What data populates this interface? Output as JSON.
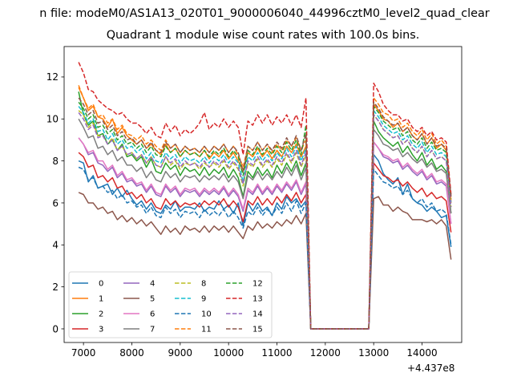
{
  "suptitle": "n file: modeM0/AS1A13_020T01_9000006040_44996cztM0_level2_quad_clear",
  "chart_data": {
    "type": "line",
    "title": "Quadrant 1 module wise count rates with 100.0s bins.",
    "xlabel": "",
    "ylabel": "",
    "x_offset_label": "+4.437e8",
    "x_offset": 443700000,
    "xlim": [
      6600,
      14820
    ],
    "ylim": [
      -0.65,
      13.45
    ],
    "xticks": [
      7000,
      8000,
      9000,
      10000,
      11000,
      12000,
      13000,
      14000
    ],
    "yticks": [
      0,
      2,
      4,
      6,
      8,
      10,
      12
    ],
    "grid": false,
    "legend_position": "lower-left",
    "x": [
      6900,
      7000,
      7100,
      7200,
      7300,
      7400,
      7500,
      7600,
      7700,
      7800,
      7900,
      8000,
      8100,
      8200,
      8300,
      8400,
      8500,
      8600,
      8700,
      8800,
      8900,
      9000,
      9100,
      9200,
      9300,
      9400,
      9500,
      9600,
      9700,
      9800,
      9900,
      10000,
      10100,
      10200,
      10300,
      10400,
      10500,
      10600,
      10700,
      10800,
      10900,
      11000,
      11100,
      11200,
      11300,
      11400,
      11500,
      11600,
      11700,
      11800,
      12900,
      13000,
      13100,
      13200,
      13300,
      13400,
      13500,
      13600,
      13700,
      13800,
      13900,
      14000,
      14100,
      14200,
      14300,
      14400,
      14500,
      14600
    ],
    "series": [
      {
        "name": "0",
        "color": "#1f77b4",
        "dash": "solid",
        "values": [
          8.0,
          7.9,
          7.0,
          7.3,
          6.7,
          6.8,
          6.9,
          6.4,
          6.7,
          6.3,
          6.6,
          6.2,
          5.9,
          6.1,
          5.7,
          6.0,
          5.6,
          5.5,
          5.9,
          5.7,
          6.1,
          5.6,
          5.8,
          5.8,
          5.7,
          6.0,
          5.6,
          5.8,
          5.7,
          6.1,
          5.7,
          5.9,
          5.5,
          6.0,
          4.9,
          6.0,
          5.6,
          6.0,
          5.6,
          5.8,
          5.4,
          6.0,
          5.7,
          6.3,
          6.0,
          6.2,
          5.8,
          6.1,
          0,
          0,
          0,
          8.3,
          8.0,
          7.4,
          7.1,
          6.9,
          7.2,
          6.4,
          6.9,
          6.2,
          6.0,
          5.9,
          5.6,
          5.8,
          5.6,
          5.3,
          5.4,
          3.9
        ]
      },
      {
        "name": "1",
        "color": "#ff7f0e",
        "dash": "solid",
        "values": [
          11.5,
          11.0,
          10.4,
          10.6,
          10.1,
          10.0,
          9.6,
          10.0,
          9.3,
          9.6,
          9.2,
          9.0,
          8.8,
          9.0,
          8.6,
          8.8,
          8.5,
          8.3,
          8.8,
          8.4,
          8.6,
          8.2,
          8.5,
          8.3,
          8.4,
          8.2,
          8.5,
          8.1,
          8.4,
          8.2,
          8.5,
          8.1,
          8.4,
          8.0,
          7.5,
          8.4,
          8.2,
          8.6,
          8.2,
          8.5,
          8.1,
          8.5,
          8.2,
          8.7,
          8.4,
          8.8,
          8.2,
          8.7,
          0,
          0,
          0,
          10.7,
          10.4,
          10.0,
          9.9,
          9.6,
          9.8,
          9.4,
          9.6,
          9.2,
          9.0,
          9.3,
          8.8,
          9.1,
          8.6,
          8.8,
          8.5,
          6.0
        ]
      },
      {
        "name": "2",
        "color": "#2ca02c",
        "dash": "solid",
        "values": [
          11.3,
          10.2,
          9.7,
          9.9,
          9.2,
          9.3,
          8.8,
          9.0,
          8.5,
          8.8,
          8.2,
          8.3,
          8.0,
          8.2,
          7.7,
          8.1,
          7.5,
          7.4,
          7.9,
          7.6,
          7.8,
          7.3,
          7.7,
          7.5,
          7.6,
          7.3,
          7.7,
          7.3,
          7.6,
          7.4,
          7.7,
          7.2,
          7.6,
          7.2,
          6.3,
          7.5,
          7.2,
          7.7,
          7.3,
          7.6,
          7.2,
          7.8,
          7.4,
          7.9,
          7.5,
          8.0,
          7.3,
          7.9,
          0,
          0,
          0,
          9.9,
          9.4,
          9.1,
          8.9,
          8.7,
          8.9,
          8.4,
          8.7,
          8.3,
          8.0,
          8.4,
          7.8,
          8.1,
          7.6,
          7.8,
          7.5,
          5.5
        ]
      },
      {
        "name": "3",
        "color": "#d62728",
        "dash": "solid",
        "values": [
          8.4,
          8.2,
          7.7,
          7.8,
          7.2,
          7.3,
          7.0,
          7.2,
          6.7,
          6.8,
          6.4,
          6.5,
          6.2,
          6.4,
          6.0,
          6.2,
          5.8,
          5.7,
          6.2,
          5.9,
          6.1,
          5.8,
          6.0,
          5.9,
          6.0,
          5.8,
          6.1,
          5.9,
          6.1,
          5.9,
          6.2,
          5.8,
          6.1,
          5.8,
          5.1,
          6.1,
          5.9,
          6.3,
          5.9,
          6.2,
          5.9,
          6.3,
          6.0,
          6.4,
          6.1,
          6.5,
          6.0,
          6.4,
          0,
          0,
          0,
          7.9,
          7.6,
          7.3,
          7.2,
          7.0,
          7.1,
          6.8,
          7.0,
          6.7,
          6.5,
          6.7,
          6.3,
          6.5,
          6.2,
          6.3,
          6.1,
          4.6
        ]
      },
      {
        "name": "4",
        "color": "#9467bd",
        "dash": "solid",
        "values": [
          9.1,
          8.8,
          8.3,
          8.4,
          7.9,
          7.8,
          7.5,
          7.7,
          7.2,
          7.4,
          7.0,
          7.1,
          6.8,
          6.9,
          6.5,
          6.8,
          6.4,
          6.3,
          6.8,
          6.5,
          6.7,
          6.3,
          6.6,
          6.5,
          6.6,
          6.3,
          6.6,
          6.4,
          6.6,
          6.4,
          6.7,
          6.3,
          6.6,
          6.3,
          5.6,
          6.6,
          6.4,
          6.8,
          6.4,
          6.7,
          6.4,
          6.8,
          6.5,
          6.9,
          6.6,
          7.0,
          6.4,
          6.9,
          0,
          0,
          0,
          8.9,
          8.6,
          8.2,
          8.1,
          7.9,
          8.0,
          7.6,
          7.8,
          7.5,
          7.3,
          7.5,
          7.1,
          7.3,
          6.9,
          7.0,
          6.8,
          5.0
        ]
      },
      {
        "name": "5",
        "color": "#8c564b",
        "dash": "solid",
        "values": [
          6.5,
          6.4,
          6.0,
          6.0,
          5.7,
          5.8,
          5.5,
          5.6,
          5.2,
          5.4,
          5.1,
          5.3,
          5.0,
          5.2,
          4.9,
          5.1,
          4.8,
          4.5,
          4.9,
          4.6,
          4.8,
          4.5,
          4.9,
          4.7,
          4.8,
          4.6,
          4.9,
          4.6,
          4.9,
          4.7,
          4.9,
          4.6,
          4.9,
          4.6,
          4.3,
          4.9,
          4.7,
          5.1,
          4.8,
          5.0,
          4.8,
          5.1,
          4.9,
          5.2,
          5.0,
          5.4,
          5.0,
          5.5,
          0,
          0,
          0,
          6.2,
          6.3,
          5.9,
          5.9,
          5.6,
          5.8,
          5.6,
          5.5,
          5.2,
          5.2,
          5.2,
          5.1,
          5.2,
          5.0,
          5.2,
          4.9,
          3.3
        ]
      },
      {
        "name": "6",
        "color": "#e377c2",
        "dash": "solid",
        "values": [
          9.1,
          8.8,
          8.4,
          8.5,
          8.0,
          8.0,
          7.6,
          7.8,
          7.3,
          7.5,
          7.1,
          7.2,
          6.9,
          7.0,
          6.6,
          6.9,
          6.5,
          6.4,
          6.9,
          6.6,
          6.8,
          6.4,
          6.7,
          6.6,
          6.7,
          6.4,
          6.7,
          6.5,
          6.7,
          6.5,
          6.8,
          6.4,
          6.7,
          6.4,
          5.7,
          6.7,
          6.5,
          6.9,
          6.5,
          6.8,
          6.5,
          6.9,
          6.6,
          7.0,
          6.7,
          7.1,
          6.5,
          7.0,
          0,
          0,
          0,
          8.9,
          8.6,
          8.3,
          8.2,
          8.0,
          8.1,
          7.7,
          7.9,
          7.6,
          7.4,
          7.6,
          7.2,
          7.4,
          7.0,
          7.1,
          6.9,
          5.0
        ]
      },
      {
        "name": "7",
        "color": "#7f7f7f",
        "dash": "solid",
        "values": [
          10.0,
          9.6,
          9.1,
          9.2,
          8.6,
          8.7,
          8.3,
          8.5,
          8.0,
          8.2,
          7.8,
          7.8,
          7.5,
          7.7,
          7.2,
          7.5,
          7.1,
          7.0,
          7.5,
          7.2,
          7.4,
          7.0,
          7.3,
          7.2,
          7.3,
          7.0,
          7.3,
          7.1,
          7.3,
          7.1,
          7.4,
          7.0,
          7.3,
          7.0,
          6.2,
          7.3,
          7.1,
          7.5,
          7.1,
          7.4,
          7.1,
          7.5,
          7.2,
          7.7,
          7.3,
          7.8,
          7.1,
          7.7,
          0,
          0,
          0,
          9.5,
          9.2,
          8.8,
          8.7,
          8.5,
          8.6,
          8.2,
          8.4,
          8.1,
          7.9,
          8.1,
          7.7,
          7.9,
          7.5,
          7.6,
          7.4,
          5.5
        ]
      },
      {
        "name": "8",
        "color": "#bcbd22",
        "dash": "dashed",
        "values": [
          10.4,
          10.2,
          9.6,
          9.8,
          9.2,
          9.2,
          8.8,
          9.1,
          8.5,
          8.7,
          8.3,
          8.4,
          8.1,
          8.3,
          7.9,
          8.2,
          7.8,
          7.7,
          8.2,
          7.8,
          8.0,
          7.6,
          7.9,
          7.8,
          7.9,
          7.6,
          7.9,
          7.7,
          7.9,
          7.7,
          8.0,
          7.6,
          7.9,
          7.6,
          6.8,
          7.9,
          7.7,
          8.1,
          7.7,
          8.0,
          7.7,
          8.1,
          7.8,
          8.3,
          7.9,
          8.4,
          7.7,
          8.3,
          0,
          0,
          0,
          10.2,
          9.9,
          9.5,
          9.3,
          9.1,
          9.2,
          8.8,
          9.0,
          8.6,
          8.4,
          8.7,
          8.2,
          8.5,
          8.1,
          8.2,
          8.0,
          5.8
        ]
      },
      {
        "name": "9",
        "color": "#17becf",
        "dash": "dashed",
        "values": [
          10.6,
          10.3,
          9.8,
          10.0,
          9.4,
          9.5,
          9.0,
          9.3,
          8.8,
          9.0,
          8.6,
          8.7,
          8.4,
          8.6,
          8.1,
          8.4,
          8.0,
          7.9,
          8.4,
          8.1,
          8.3,
          7.9,
          8.2,
          8.0,
          8.1,
          7.9,
          8.2,
          7.9,
          8.2,
          8.0,
          8.3,
          7.9,
          8.2,
          7.9,
          7.0,
          8.2,
          8.0,
          8.4,
          8.0,
          8.3,
          8.0,
          8.4,
          8.1,
          8.6,
          8.2,
          8.7,
          8.0,
          8.6,
          0,
          0,
          0,
          10.4,
          10.1,
          9.7,
          9.5,
          9.3,
          9.4,
          9.0,
          9.2,
          8.8,
          8.6,
          8.9,
          8.4,
          8.7,
          8.3,
          8.4,
          8.2,
          6.0
        ]
      },
      {
        "name": "10",
        "color": "#1f77b4",
        "dash": "dashed",
        "values": [
          7.7,
          7.6,
          7.1,
          7.2,
          6.7,
          6.8,
          6.5,
          6.6,
          6.2,
          6.4,
          6.0,
          6.1,
          5.8,
          5.9,
          5.5,
          5.8,
          5.4,
          5.3,
          5.8,
          5.5,
          5.7,
          5.3,
          5.6,
          5.5,
          5.6,
          5.3,
          5.7,
          5.4,
          5.6,
          5.4,
          5.7,
          5.3,
          5.6,
          5.3,
          4.8,
          5.6,
          5.4,
          5.8,
          5.4,
          5.7,
          5.4,
          5.8,
          5.5,
          6.0,
          5.6,
          6.1,
          5.5,
          6.0,
          0,
          0,
          0,
          7.6,
          7.3,
          7.0,
          6.9,
          6.7,
          6.8,
          6.4,
          6.6,
          6.2,
          6.0,
          6.2,
          5.8,
          6.0,
          5.6,
          5.7,
          5.5,
          4.0
        ]
      },
      {
        "name": "11",
        "color": "#ff7f0e",
        "dash": "dashed",
        "values": [
          11.6,
          11.0,
          10.5,
          10.7,
          10.1,
          10.2,
          9.8,
          10.0,
          9.5,
          9.7,
          9.3,
          9.2,
          9.0,
          9.2,
          8.8,
          9.0,
          8.7,
          8.5,
          9.0,
          8.6,
          8.8,
          8.4,
          8.7,
          8.5,
          8.6,
          8.4,
          8.7,
          8.4,
          8.7,
          8.5,
          8.8,
          8.4,
          8.7,
          8.3,
          7.7,
          8.7,
          8.5,
          8.9,
          8.5,
          8.8,
          8.4,
          8.8,
          8.5,
          9.0,
          8.7,
          9.1,
          8.5,
          9.0,
          0,
          0,
          0,
          11.0,
          10.7,
          10.3,
          10.2,
          9.9,
          10.0,
          9.6,
          9.8,
          9.4,
          9.2,
          9.5,
          9.0,
          9.3,
          8.8,
          9.0,
          8.7,
          6.1
        ]
      },
      {
        "name": "12",
        "color": "#2ca02c",
        "dash": "dashed",
        "values": [
          10.8,
          10.5,
          10.0,
          10.2,
          9.6,
          9.7,
          9.3,
          9.5,
          9.0,
          9.2,
          8.8,
          8.9,
          8.6,
          8.8,
          8.4,
          8.7,
          8.3,
          8.2,
          8.7,
          8.4,
          8.6,
          8.2,
          8.5,
          8.3,
          8.4,
          8.2,
          8.5,
          8.2,
          8.5,
          8.3,
          8.6,
          8.2,
          8.5,
          8.2,
          7.3,
          8.5,
          8.3,
          8.7,
          8.3,
          8.6,
          8.3,
          8.7,
          8.4,
          8.9,
          8.5,
          9.0,
          8.3,
          9.7,
          0,
          0,
          0,
          10.6,
          10.3,
          9.9,
          9.7,
          9.5,
          9.6,
          9.2,
          9.4,
          9.0,
          8.8,
          9.1,
          8.6,
          8.9,
          8.5,
          8.6,
          8.4,
          6.2
        ]
      },
      {
        "name": "13",
        "color": "#d62728",
        "dash": "dashed",
        "values": [
          12.7,
          12.2,
          11.4,
          11.3,
          10.9,
          10.7,
          10.5,
          10.4,
          10.2,
          10.3,
          10.0,
          9.8,
          9.8,
          9.6,
          9.3,
          9.6,
          9.2,
          9.1,
          9.8,
          9.4,
          9.7,
          9.2,
          9.5,
          9.3,
          9.5,
          9.8,
          10.3,
          9.5,
          9.8,
          9.6,
          10.0,
          9.6,
          9.9,
          9.6,
          8.3,
          9.9,
          9.7,
          10.2,
          9.8,
          10.2,
          9.7,
          10.1,
          9.8,
          10.2,
          9.7,
          10.2,
          9.6,
          11.0,
          0,
          0,
          0,
          11.7,
          11.3,
          10.7,
          10.4,
          10.2,
          10.2,
          9.9,
          10.0,
          9.6,
          9.4,
          9.6,
          9.2,
          9.4,
          9.0,
          9.1,
          8.9,
          6.4
        ]
      },
      {
        "name": "14",
        "color": "#9467bd",
        "dash": "dashed",
        "values": [
          10.3,
          10.0,
          9.5,
          9.7,
          9.1,
          9.2,
          8.8,
          9.0,
          8.5,
          8.7,
          8.3,
          8.4,
          8.1,
          8.3,
          7.9,
          8.2,
          7.8,
          7.7,
          8.2,
          7.9,
          8.1,
          7.7,
          8.0,
          7.8,
          7.9,
          7.7,
          8.0,
          7.7,
          8.0,
          7.8,
          8.1,
          7.7,
          8.0,
          7.7,
          6.9,
          8.0,
          7.8,
          8.2,
          7.8,
          8.1,
          7.8,
          8.2,
          7.9,
          8.4,
          8.0,
          8.5,
          7.8,
          8.4,
          0,
          0,
          0,
          10.2,
          9.9,
          9.5,
          9.3,
          9.1,
          9.2,
          8.8,
          9.0,
          8.6,
          8.4,
          8.7,
          8.2,
          8.5,
          8.1,
          8.2,
          8.0,
          5.8
        ]
      },
      {
        "name": "15",
        "color": "#8c564b",
        "dash": "dashed",
        "values": [
          11.0,
          10.7,
          10.2,
          10.4,
          9.8,
          9.9,
          9.5,
          9.7,
          9.2,
          9.4,
          9.0,
          9.1,
          8.8,
          9.0,
          8.6,
          8.9,
          8.5,
          8.4,
          8.9,
          8.6,
          8.8,
          8.4,
          8.7,
          8.5,
          8.6,
          8.4,
          8.7,
          8.4,
          8.7,
          8.5,
          8.8,
          8.4,
          8.7,
          8.4,
          7.5,
          8.7,
          8.5,
          8.9,
          8.5,
          8.8,
          8.5,
          8.9,
          8.6,
          9.1,
          8.7,
          9.2,
          8.5,
          9.3,
          0,
          0,
          0,
          10.8,
          10.5,
          10.1,
          9.9,
          9.7,
          9.8,
          9.4,
          9.6,
          9.2,
          9.0,
          9.3,
          8.8,
          9.1,
          8.7,
          8.8,
          8.6,
          6.3
        ]
      }
    ]
  }
}
